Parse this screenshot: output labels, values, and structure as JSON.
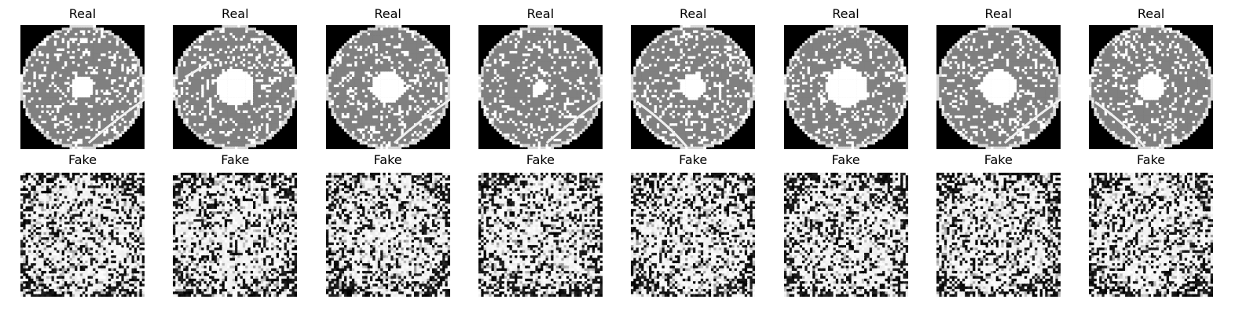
{
  "real_title": "Real",
  "fake_title": "Fake",
  "background_color": "#ffffff",
  "real_samples": [
    {
      "title": "Real",
      "hole_radius": 0.18,
      "scratch": "bottom-right-long"
    },
    {
      "title": "Real",
      "hole_radius": 0.3,
      "scratch": "top-left-short"
    },
    {
      "title": "Real",
      "hole_radius": 0.26,
      "scratch": "bottom-right-long"
    },
    {
      "title": "Real",
      "hole_radius": 0.12,
      "scratch": "bottom-right-long"
    },
    {
      "title": "Real",
      "hole_radius": 0.2,
      "scratch": "bottom-left-long"
    },
    {
      "title": "Real",
      "hole_radius": 0.32,
      "scratch": "none"
    },
    {
      "title": "Real",
      "hole_radius": 0.28,
      "scratch": "bottom-right-long"
    },
    {
      "title": "Real",
      "hole_radius": 0.22,
      "scratch": "bottom-left-long"
    }
  ],
  "fake_samples": [
    {
      "title": "Fake"
    },
    {
      "title": "Fake"
    },
    {
      "title": "Fake"
    },
    {
      "title": "Fake"
    },
    {
      "title": "Fake"
    },
    {
      "title": "Fake"
    },
    {
      "title": "Fake"
    },
    {
      "title": "Fake"
    }
  ],
  "colors": {
    "disk_gray": "#808080",
    "speckle_white": "#ffffff",
    "outside_black": "#000000"
  }
}
